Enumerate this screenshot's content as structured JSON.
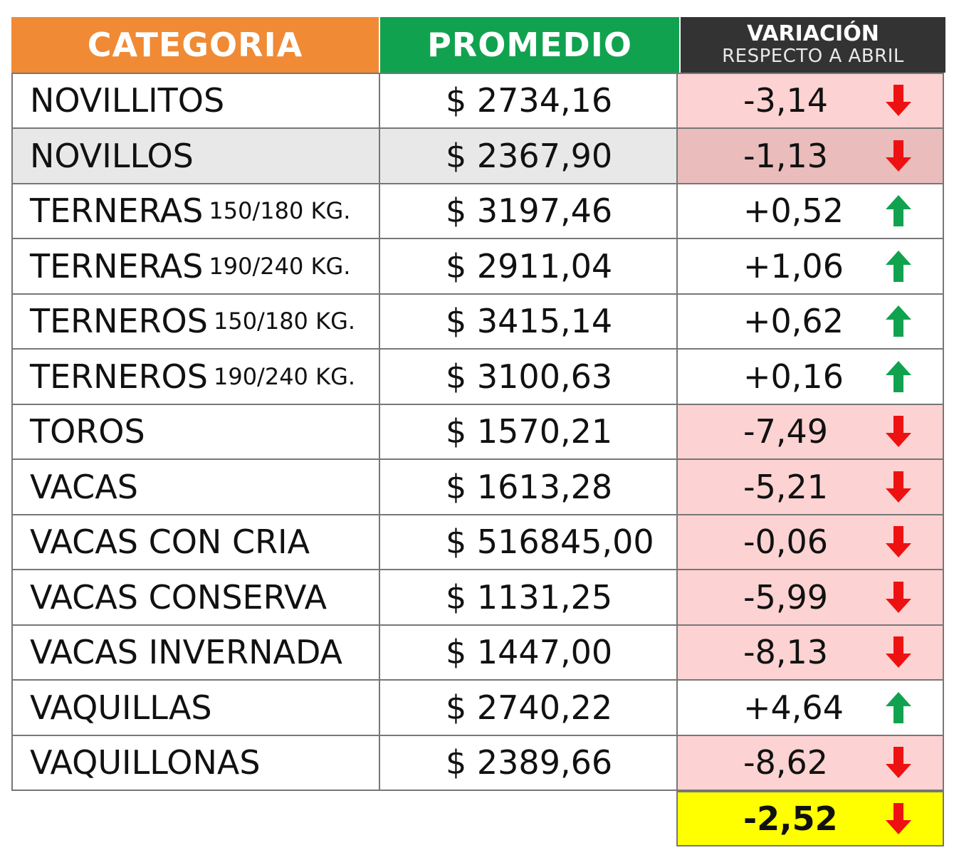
{
  "header": {
    "categoria": "CATEGORIA",
    "promedio": "PROMEDIO",
    "variacion": "VARIACIÓN",
    "variacion_sub": "RESPECTO A ABRIL"
  },
  "colors": {
    "categoria_header": "#f08a35",
    "promedio_header": "#11a24f",
    "variacion_header": "#333333",
    "negative_bg": "#fdd2d2",
    "highlight_bg": "#ffff00",
    "down_arrow": "#ee1111",
    "up_arrow": "#11a24f"
  },
  "rows": [
    {
      "category": "NOVILLITOS",
      "sub": "",
      "price": "$ 2734,16",
      "variation": "-3,14",
      "direction": "down",
      "icon": "down-arrow-icon"
    },
    {
      "category": "NOVILLOS",
      "sub": "",
      "price": "$ 2367,90",
      "variation": "-1,13",
      "direction": "down",
      "icon": "down-arrow-icon"
    },
    {
      "category": "TERNERAS",
      "sub": "150/180 KG.",
      "price": "$ 3197,46",
      "variation": "+0,52",
      "direction": "up",
      "icon": "up-arrow-icon"
    },
    {
      "category": "TERNERAS",
      "sub": "190/240 KG.",
      "price": "$ 2911,04",
      "variation": "+1,06",
      "direction": "up",
      "icon": "up-arrow-icon"
    },
    {
      "category": "TERNEROS",
      "sub": "150/180 KG.",
      "price": "$ 3415,14",
      "variation": "+0,62",
      "direction": "up",
      "icon": "up-arrow-icon"
    },
    {
      "category": "TERNEROS",
      "sub": "190/240 KG.",
      "price": "$ 3100,63",
      "variation": "+0,16",
      "direction": "up",
      "icon": "up-arrow-icon"
    },
    {
      "category": "TOROS",
      "sub": "",
      "price": "$ 1570,21",
      "variation": "-7,49",
      "direction": "down",
      "icon": "down-arrow-icon"
    },
    {
      "category": "VACAS",
      "sub": "",
      "price": "$ 1613,28",
      "variation": "-5,21",
      "direction": "down",
      "icon": "down-arrow-icon"
    },
    {
      "category": "VACAS CON CRIA",
      "sub": "",
      "price": "$ 516845,00",
      "variation": "-0,06",
      "direction": "down",
      "icon": "down-arrow-icon"
    },
    {
      "category": "VACAS CONSERVA",
      "sub": "",
      "price": "$ 1131,25",
      "variation": "-5,99",
      "direction": "down",
      "icon": "down-arrow-icon"
    },
    {
      "category": "VACAS INVERNADA",
      "sub": "",
      "price": "$ 1447,00",
      "variation": "-8,13",
      "direction": "down",
      "icon": "down-arrow-icon"
    },
    {
      "category": "VAQUILLAS",
      "sub": "",
      "price": "$ 2740,22",
      "variation": "+4,64",
      "direction": "up",
      "icon": "up-arrow-icon"
    },
    {
      "category": "VAQUILLONAS",
      "sub": "",
      "price": "$ 2389,66",
      "variation": "-8,62",
      "direction": "down",
      "icon": "down-arrow-icon"
    }
  ],
  "total": {
    "variation": "-2,52",
    "direction": "down",
    "icon": "down-arrow-icon"
  }
}
